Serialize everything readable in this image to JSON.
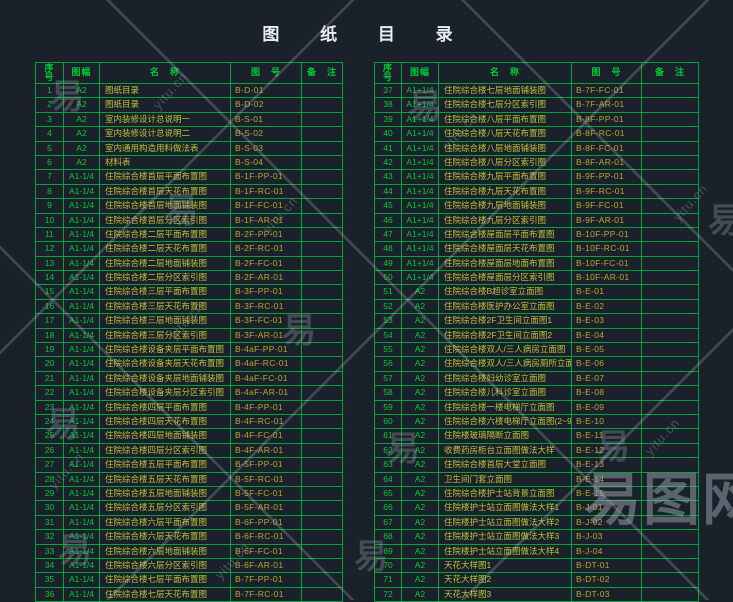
{
  "title": "图 纸 目 录",
  "colors": {
    "background": "#1b212a",
    "grid": "#00a33a",
    "text_green": "#00cc33",
    "text_name": "#b9c43a",
    "text_code": "#b4a92e",
    "title_text": "#e9edf2",
    "watermark": "#9ba4b1"
  },
  "watermark": {
    "char": "易",
    "site": "yitu.cn",
    "brand": "易图网"
  },
  "tables": [
    {
      "id": "left",
      "columns": [
        "序\n号",
        "图幅",
        "名　称",
        "图　号",
        "备　注"
      ],
      "rows": [
        [
          "1",
          "A2",
          "图纸目录",
          "B-D-01",
          ""
        ],
        [
          "2",
          "A2",
          "图纸目录",
          "B-D-02",
          ""
        ],
        [
          "3",
          "A2",
          "室内装修设计总说明一",
          "B-S-01",
          ""
        ],
        [
          "4",
          "A2",
          "室内装修设计总说明二",
          "B-S-02",
          ""
        ],
        [
          "5",
          "A2",
          "室内通用构造用料做法表",
          "B-S-03",
          ""
        ],
        [
          "6",
          "A2",
          "材料表",
          "B-S-04",
          ""
        ],
        [
          "7",
          "A1-1/4",
          "住院综合楼首层平面布置图",
          "B-1F-PP-01",
          ""
        ],
        [
          "8",
          "A1-1/4",
          "住院综合楼首层天花布置图",
          "B-1F-RC-01",
          ""
        ],
        [
          "9",
          "A1-1/4",
          "住院综合楼首层地面铺装图",
          "B-1F-FC-01",
          ""
        ],
        [
          "10",
          "A1-1/4",
          "住院综合楼首层分区索引图",
          "B-1F-AR-01",
          ""
        ],
        [
          "11",
          "A1-1/4",
          "住院综合楼二层平面布置图",
          "B-2F-PP-01",
          ""
        ],
        [
          "12",
          "A1-1/4",
          "住院综合楼二层天花布置图",
          "B-2F-RC-01",
          ""
        ],
        [
          "13",
          "A1-1/4",
          "住院综合楼二层地面铺装图",
          "B-2F-FC-01",
          ""
        ],
        [
          "14",
          "A1-1/4",
          "住院综合楼二层分区索引图",
          "B-2F-AR-01",
          ""
        ],
        [
          "15",
          "A1-1/4",
          "住院综合楼三层平面布置图",
          "B-3F-PP-01",
          ""
        ],
        [
          "16",
          "A1-1/4",
          "住院综合楼三层天花布置图",
          "B-3F-RC-01",
          ""
        ],
        [
          "17",
          "A1-1/4",
          "住院综合楼三层地面铺装图",
          "B-3F-FC-01",
          ""
        ],
        [
          "18",
          "A1-1/4",
          "住院综合楼三层分区索引图",
          "B-3F-AR-01",
          ""
        ],
        [
          "19",
          "A1-1/4",
          "住院综合楼设备夹层平面布置图",
          "B-4aF-PP-01",
          ""
        ],
        [
          "20",
          "A1-1/4",
          "住院综合楼设备夹层天花布置图",
          "B-4aF-RC-01",
          ""
        ],
        [
          "21",
          "A1-1/4",
          "住院综合楼设备夹层地面铺装图",
          "B-4aF-FC-01",
          ""
        ],
        [
          "22",
          "A1-1/4",
          "住院综合楼设备夹层分区索引图",
          "B-4aF-AR-01",
          ""
        ],
        [
          "23",
          "A1-1/4",
          "住院综合楼四层平面布置图",
          "B-4F-PP-01",
          ""
        ],
        [
          "24",
          "A1-1/4",
          "住院综合楼四层天花布置图",
          "B-4F-RC-01",
          ""
        ],
        [
          "25",
          "A1-1/4",
          "住院综合楼四层地面铺装图",
          "B-4F-FC-01",
          ""
        ],
        [
          "26",
          "A1-1/4",
          "住院综合楼四层分区索引图",
          "B-4F-AR-01",
          ""
        ],
        [
          "27",
          "A1-1/4",
          "住院综合楼五层平面布置图",
          "B-5F-PP-01",
          ""
        ],
        [
          "28",
          "A1-1/4",
          "住院综合楼五层天花布置图",
          "B-5F-RC-01",
          ""
        ],
        [
          "29",
          "A1-1/4",
          "住院综合楼五层地面铺装图",
          "B-5F-FC-01",
          ""
        ],
        [
          "30",
          "A1-1/4",
          "住院综合楼五层分区索引图",
          "B-5F-AR-01",
          ""
        ],
        [
          "31",
          "A1-1/4",
          "住院综合楼六层平面布置图",
          "B-6F-PP-01",
          ""
        ],
        [
          "32",
          "A1-1/4",
          "住院综合楼六层天花布置图",
          "B-6F-RC-01",
          ""
        ],
        [
          "33",
          "A1-1/4",
          "住院综合楼六层地面铺装图",
          "B-6F-FC-01",
          ""
        ],
        [
          "34",
          "A1-1/4",
          "住院综合楼六层分区索引图",
          "B-6F-AR-01",
          ""
        ],
        [
          "35",
          "A1-1/4",
          "住院综合楼七层平面布置图",
          "B-7F-PP-01",
          ""
        ],
        [
          "36",
          "A1-1/4",
          "住院综合楼七层天花布置图",
          "B-7F-RC-01",
          ""
        ]
      ]
    },
    {
      "id": "right",
      "columns": [
        "序\n号",
        "图幅",
        "名　称",
        "图　号",
        "备　注"
      ],
      "rows": [
        [
          "37",
          "A1+1/4",
          "住院综合楼七层地面铺装图",
          "B-7F-FC-01",
          ""
        ],
        [
          "38",
          "A1+1/4",
          "住院综合楼七层分区索引图",
          "B-7F-AR-01",
          ""
        ],
        [
          "39",
          "A1+1/4",
          "住院综合楼八层平面布置图",
          "B-8F-PP-01",
          ""
        ],
        [
          "40",
          "A1+1/4",
          "住院综合楼八层天花布置图",
          "B-8F-RC-01",
          ""
        ],
        [
          "41",
          "A1+1/4",
          "住院综合楼八层地面铺装图",
          "B-8F-FC-01",
          ""
        ],
        [
          "42",
          "A1+1/4",
          "住院综合楼八层分区索引图",
          "B-8F-AR-01",
          ""
        ],
        [
          "43",
          "A1+1/4",
          "住院综合楼九层平面布置图",
          "B-9F-PP-01",
          ""
        ],
        [
          "44",
          "A1+1/4",
          "住院综合楼九层天花布置图",
          "B-9F-RC-01",
          ""
        ],
        [
          "45",
          "A1+1/4",
          "住院综合楼九层地面铺装图",
          "B-9F-FC-01",
          ""
        ],
        [
          "46",
          "A1+1/4",
          "住院综合楼九层分区索引图",
          "B-9F-AR-01",
          ""
        ],
        [
          "47",
          "A1+1/4",
          "住院综合楼屋面层平面布置图",
          "B-10F-PP-01",
          ""
        ],
        [
          "48",
          "A1+1/4",
          "住院综合楼屋面层天花布置图",
          "B-10F-RC-01",
          ""
        ],
        [
          "49",
          "A1+1/4",
          "住院综合楼屋面层地面布置图",
          "B-10F-FC-01",
          ""
        ],
        [
          "50",
          "A1+1/4",
          "住院综合楼屋面层分区索引图",
          "B-10F-AR-01",
          ""
        ],
        [
          "51",
          "A2",
          "住院综合楼B超诊室立面图",
          "B-E-01",
          ""
        ],
        [
          "52",
          "A2",
          "住院综合楼医护办公室立面图",
          "B-E-02",
          ""
        ],
        [
          "53",
          "A2",
          "住院综合楼2F卫生间立面图1",
          "B-E-03",
          ""
        ],
        [
          "54",
          "A2",
          "住院综合楼2F卫生间立面图2",
          "B-E-04",
          ""
        ],
        [
          "55",
          "A2",
          "住院综合楼双人/三人病房立面图",
          "B-E-05",
          ""
        ],
        [
          "56",
          "A2",
          "住院综合楼双人/三人病房厕所立面图",
          "B-E-06",
          ""
        ],
        [
          "57",
          "A2",
          "住院综合楼妇幼诊室立面图",
          "B-E-07",
          ""
        ],
        [
          "58",
          "A2",
          "住院综合楼儿科诊室立面图",
          "B-E-08",
          ""
        ],
        [
          "59",
          "A2",
          "住院综合楼一楼电梯厅立面图",
          "B-E-09",
          ""
        ],
        [
          "60",
          "A2",
          "住院综合楼六楼电梯厅立面图(2~9楼参考)",
          "B-E-10",
          ""
        ],
        [
          "61",
          "A2",
          "住院楼玻璃隔断立面图",
          "B-E-11",
          ""
        ],
        [
          "62",
          "A2",
          "收费药房柜台立面图做法大样",
          "B-E-12",
          ""
        ],
        [
          "63",
          "A2",
          "住院综合楼首层大堂立面图",
          "B-E-13",
          ""
        ],
        [
          "64",
          "A2",
          "卫生间门套立面图",
          "B-E-14",
          ""
        ],
        [
          "65",
          "A2",
          "住院综合楼护士站背景立面图",
          "B-E-15",
          ""
        ],
        [
          "66",
          "A2",
          "住院楼护士站立面图做法大样1",
          "B-J-01",
          ""
        ],
        [
          "67",
          "A2",
          "住院楼护士站立面图做法大样2",
          "B-J-02",
          ""
        ],
        [
          "68",
          "A2",
          "住院楼护士站立面图做法大样3",
          "B-J-03",
          ""
        ],
        [
          "69",
          "A2",
          "住院楼护士站立面图做法大样4",
          "B-J-04",
          ""
        ],
        [
          "70",
          "A2",
          "天花大样图1",
          "B-DT-01",
          ""
        ],
        [
          "71",
          "A2",
          "天花大样图2",
          "B-DT-02",
          ""
        ],
        [
          "72",
          "A2",
          "天花大样图3",
          "B-DT-03",
          ""
        ]
      ]
    }
  ]
}
